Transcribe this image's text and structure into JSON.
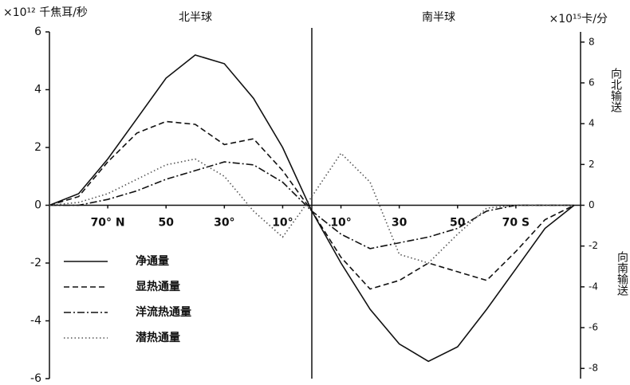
{
  "chart_data": {
    "type": "line",
    "y_label": "×10¹² 千焦耳/秒",
    "y2_label": "×10¹⁵卡/分",
    "annotations": {
      "north": "北半球",
      "south": "南半球",
      "northward": "向北输送",
      "southward": "向南输送"
    },
    "x": [
      90,
      80,
      70,
      60,
      50,
      40,
      30,
      20,
      10,
      0,
      -10,
      -20,
      -30,
      -40,
      -50,
      -60,
      -70,
      -80,
      -90
    ],
    "xlim": [
      90,
      -90
    ],
    "xticks": [
      {
        "value": 70,
        "label": "70° N"
      },
      {
        "value": 50,
        "label": "50"
      },
      {
        "value": 30,
        "label": "30°"
      },
      {
        "value": 10,
        "label": "10°"
      },
      {
        "value": -10,
        "label": "10°"
      },
      {
        "value": -30,
        "label": "30"
      },
      {
        "value": -50,
        "label": "50"
      },
      {
        "value": -70,
        "label": "70 S"
      }
    ],
    "ylim": [
      -6,
      6
    ],
    "yticks": [
      -6,
      -4,
      -2,
      0,
      2,
      4,
      6
    ],
    "y2lim": [
      -8.5,
      8.5
    ],
    "y2ticks": [
      -8,
      -6,
      -4,
      -2,
      0,
      2,
      4,
      6,
      8
    ],
    "legend": "lower left",
    "series": [
      {
        "name": "净通量",
        "color": "#111111",
        "dash": "solid",
        "values": [
          0,
          0.4,
          1.6,
          3.0,
          4.4,
          5.2,
          4.9,
          3.7,
          2.0,
          -0.2,
          -2.0,
          -3.6,
          -4.8,
          -5.4,
          -4.9,
          -3.6,
          -2.2,
          -0.8,
          0
        ]
      },
      {
        "name": "显热通量",
        "color": "#111111",
        "dash": "dashed",
        "values": [
          0,
          0.3,
          1.5,
          2.5,
          2.9,
          2.8,
          2.1,
          2.3,
          1.2,
          -0.2,
          -1.8,
          -2.9,
          -2.6,
          -2.0,
          -2.3,
          -2.6,
          -1.6,
          -0.5,
          0
        ]
      },
      {
        "name": "洋流热通量",
        "color": "#111111",
        "dash": "dashdot",
        "values": [
          0,
          0,
          0.2,
          0.5,
          0.9,
          1.2,
          1.5,
          1.4,
          0.8,
          -0.2,
          -1.0,
          -1.5,
          -1.3,
          -1.1,
          -0.8,
          -0.2,
          0,
          0,
          0
        ]
      },
      {
        "name": "潜热通量",
        "color": "#555555",
        "dash": "dotted",
        "values": [
          0,
          0.1,
          0.4,
          0.9,
          1.4,
          1.6,
          1.0,
          -0.2,
          -1.1,
          0.3,
          1.8,
          0.8,
          -1.7,
          -2.0,
          -1.0,
          -0.1,
          0,
          0,
          0
        ]
      }
    ]
  }
}
